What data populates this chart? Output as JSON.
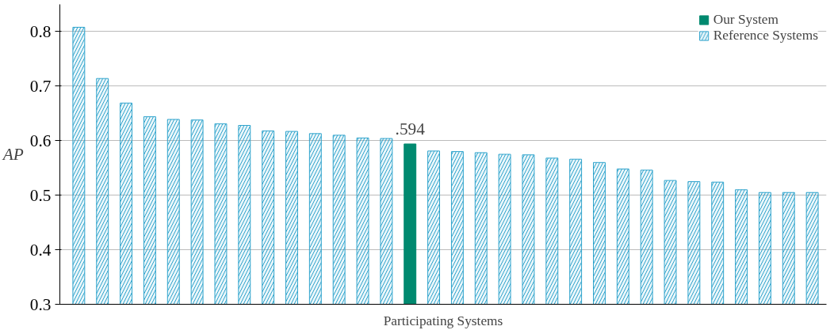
{
  "chart_data": {
    "type": "bar",
    "xlabel": "Participating Systems",
    "ylabel": "AP",
    "categories": [
      null,
      null,
      null,
      null,
      null,
      null,
      null,
      null,
      null,
      null,
      null,
      null,
      null,
      null,
      null,
      null,
      null,
      null,
      null,
      null,
      null,
      null,
      null,
      null,
      null,
      null,
      null,
      null,
      null,
      null,
      null,
      null
    ],
    "series": [
      {
        "name": "Our System",
        "color": "#00896f",
        "values": [
          null,
          null,
          null,
          null,
          null,
          null,
          null,
          null,
          null,
          null,
          null,
          null,
          null,
          null,
          0.594,
          null,
          null,
          null,
          null,
          null,
          null,
          null,
          null,
          null,
          null,
          null,
          null,
          null,
          null,
          null,
          null,
          null
        ],
        "value_labels": [
          null,
          null,
          null,
          null,
          null,
          null,
          null,
          null,
          null,
          null,
          null,
          null,
          null,
          null,
          ".594",
          null,
          null,
          null,
          null,
          null,
          null,
          null,
          null,
          null,
          null,
          null,
          null,
          null,
          null,
          null,
          null,
          null
        ]
      },
      {
        "name": "Reference Systems",
        "color": "#2ea3cc",
        "values": [
          0.808,
          0.714,
          0.669,
          0.644,
          0.639,
          0.638,
          0.631,
          0.628,
          0.618,
          0.617,
          0.613,
          0.61,
          0.605,
          0.604,
          null,
          0.581,
          0.58,
          0.578,
          0.575,
          0.574,
          0.568,
          0.566,
          0.56,
          0.548,
          0.546,
          0.527,
          0.525,
          0.524,
          0.51,
          0.505,
          0.505,
          0.505
        ]
      }
    ],
    "ylim": [
      0.3,
      0.85
    ],
    "yticks": [
      0.3,
      0.4,
      0.5,
      0.6,
      0.7,
      0.8
    ],
    "grid": "y",
    "legend": "top right"
  }
}
